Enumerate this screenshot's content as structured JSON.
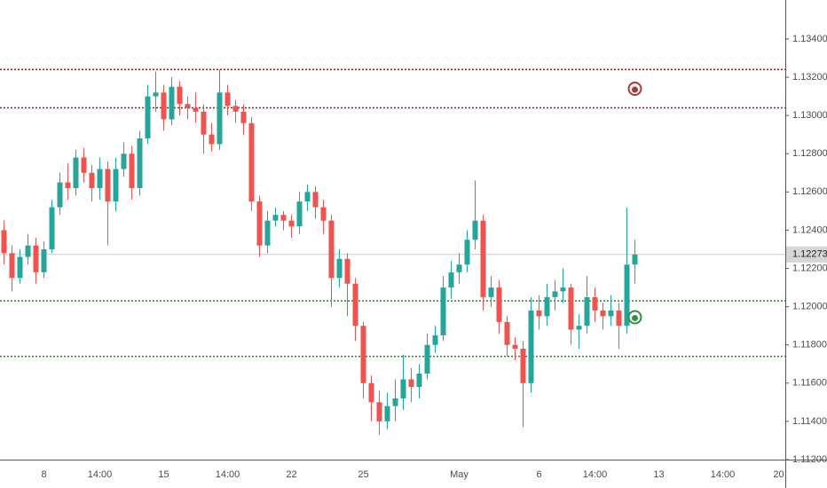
{
  "chart_data": {
    "type": "candlestick",
    "up_color": "#26a69a",
    "down_color": "#ef5350",
    "categories": [
      null,
      null,
      null,
      null,
      null,
      "8",
      null,
      null,
      null,
      null,
      null,
      null,
      "14:00",
      null,
      null,
      null,
      null,
      null,
      null,
      null,
      "15",
      null,
      null,
      null,
      null,
      null,
      null,
      null,
      "14:00",
      null,
      null,
      null,
      null,
      null,
      null,
      null,
      "22",
      null,
      null,
      null,
      null,
      null,
      null,
      null,
      null,
      "25",
      null,
      null,
      null,
      null,
      null,
      null,
      null,
      null,
      null,
      null,
      null,
      "May",
      null,
      null,
      null,
      null,
      null,
      null,
      null,
      null,
      null,
      "6",
      null,
      null,
      null,
      null,
      null,
      null,
      "14:00",
      null,
      null,
      null,
      null,
      null,
      null,
      null,
      "13",
      null,
      null,
      null,
      null,
      null,
      null,
      null,
      "14:00",
      null,
      null,
      null,
      null,
      null,
      null,
      "20"
    ],
    "open": [
      1.124,
      1.1228,
      1.1215,
      1.1226,
      1.1232,
      1.1218,
      1.123,
      1.1252,
      1.1265,
      1.1262,
      1.1278,
      1.127,
      1.1262,
      1.1272,
      1.1255,
      1.1272,
      1.128,
      1.1262,
      1.1288,
      1.131,
      1.1312,
      1.1298,
      1.1315,
      1.1306,
      1.1304,
      1.1302,
      1.129,
      1.1285,
      1.1312,
      1.1305,
      1.1302,
      1.1296,
      1.1255,
      1.1232,
      1.1245,
      1.1248,
      1.1245,
      1.1242,
      1.1255,
      1.126,
      1.1252,
      1.1245,
      1.1215,
      1.1225,
      1.1212,
      1.119,
      1.116,
      1.115,
      1.114,
      1.1148,
      1.1152,
      1.1162,
      1.1158,
      1.1165,
      1.118,
      1.1185,
      1.121,
      1.1218,
      1.1222,
      1.1235,
      1.1245,
      1.1205,
      1.121,
      1.1192,
      1.118,
      1.1178,
      1.116,
      1.1198,
      1.1195,
      1.1205,
      1.1208,
      1.121,
      1.1188,
      1.119,
      1.1205,
      1.1198,
      1.1195,
      1.1198,
      1.119,
      1.1222,
      null,
      null,
      null,
      null,
      null,
      null,
      null,
      null,
      null,
      null,
      null,
      null,
      null,
      null,
      null,
      null,
      null,
      null
    ],
    "high": [
      1.1245,
      1.1232,
      1.123,
      1.1238,
      1.1236,
      1.1234,
      1.1256,
      1.127,
      1.1275,
      1.1282,
      1.1283,
      1.1274,
      1.1278,
      1.1276,
      1.1278,
      1.1286,
      1.1284,
      1.1292,
      1.1316,
      1.1323,
      1.1316,
      1.132,
      1.1318,
      1.131,
      1.1312,
      1.1306,
      1.1296,
      1.1324,
      1.1316,
      1.1308,
      1.1306,
      1.1299,
      1.1258,
      1.125,
      1.1252,
      1.125,
      1.1248,
      1.126,
      1.1264,
      1.1263,
      1.1256,
      1.1248,
      1.123,
      1.1228,
      1.1215,
      1.1192,
      1.1164,
      1.1156,
      1.1155,
      1.1162,
      1.1175,
      1.1168,
      1.117,
      1.1186,
      1.119,
      1.1216,
      1.1224,
      1.1228,
      1.124,
      1.1266,
      1.1248,
      1.1216,
      1.1214,
      1.1195,
      1.1184,
      1.1182,
      1.1205,
      1.1206,
      1.1212,
      1.1214,
      1.122,
      1.1212,
      1.1196,
      1.1216,
      1.121,
      1.1202,
      1.1206,
      1.1202,
      1.1252,
      1.1235,
      null,
      null,
      null,
      null,
      null,
      null,
      null,
      null,
      null,
      null,
      null,
      null,
      null,
      null,
      null,
      null,
      null,
      null
    ],
    "low": [
      1.1222,
      1.1208,
      1.1212,
      1.1222,
      1.1212,
      1.1215,
      1.1228,
      1.1248,
      1.1256,
      1.1258,
      1.1265,
      1.1255,
      1.1256,
      1.1232,
      1.125,
      1.1268,
      1.1256,
      1.1258,
      1.1285,
      1.1302,
      1.1292,
      1.1295,
      1.13,
      1.1298,
      1.1296,
      1.128,
      1.1281,
      1.1282,
      1.13,
      1.1296,
      1.129,
      1.125,
      1.1226,
      1.1228,
      1.1242,
      1.124,
      1.1236,
      1.1238,
      1.125,
      1.1246,
      1.1238,
      1.12,
      1.121,
      1.1195,
      1.1182,
      1.1152,
      1.114,
      1.1133,
      1.1136,
      1.114,
      1.1146,
      1.115,
      1.1152,
      1.1162,
      1.1176,
      1.1182,
      1.1204,
      1.1212,
      1.1218,
      1.123,
      1.1198,
      1.12,
      1.1186,
      1.1174,
      1.1172,
      1.1137,
      1.1155,
      1.1188,
      1.119,
      1.1198,
      1.1202,
      1.118,
      1.1178,
      1.1186,
      1.1192,
      1.1188,
      1.119,
      1.1178,
      1.1186,
      1.1212,
      null,
      null,
      null,
      null,
      null,
      null,
      null,
      null,
      null,
      null,
      null,
      null,
      null,
      null,
      null,
      null,
      null,
      null
    ],
    "close": [
      1.1228,
      1.1215,
      1.1226,
      1.1232,
      1.1218,
      1.123,
      1.1252,
      1.1265,
      1.1262,
      1.1278,
      1.127,
      1.1262,
      1.1272,
      1.1255,
      1.1272,
      1.128,
      1.1262,
      1.1288,
      1.131,
      1.1312,
      1.1298,
      1.1315,
      1.1306,
      1.1304,
      1.1302,
      1.129,
      1.1285,
      1.1312,
      1.1305,
      1.1302,
      1.1296,
      1.1255,
      1.1232,
      1.1245,
      1.1248,
      1.1245,
      1.1242,
      1.1255,
      1.126,
      1.1252,
      1.1245,
      1.1215,
      1.1225,
      1.1212,
      1.119,
      1.116,
      1.115,
      1.114,
      1.1148,
      1.1152,
      1.1162,
      1.1158,
      1.1165,
      1.118,
      1.1185,
      1.121,
      1.1218,
      1.1222,
      1.1235,
      1.1245,
      1.1205,
      1.121,
      1.1192,
      1.118,
      1.1178,
      1.116,
      1.1198,
      1.1195,
      1.1205,
      1.1208,
      1.121,
      1.1188,
      1.119,
      1.1205,
      1.1198,
      1.1195,
      1.1198,
      1.119,
      1.1222,
      1.12273,
      null,
      null,
      null,
      null,
      null,
      null,
      null,
      null,
      null,
      null,
      null,
      null,
      null,
      null,
      null,
      null,
      null,
      null
    ],
    "ylim": [
      1.112,
      1.13604
    ],
    "yticks": [
      {
        "value": 1.112,
        "label": "1.11200"
      },
      {
        "value": 1.114,
        "label": "1.11400"
      },
      {
        "value": 1.116,
        "label": "1.11600"
      },
      {
        "value": 1.118,
        "label": "1.11800"
      },
      {
        "value": 1.12,
        "label": "1.12000"
      },
      {
        "value": 1.122,
        "label": "1.12200"
      },
      {
        "value": 1.124,
        "label": "1.12400"
      },
      {
        "value": 1.126,
        "label": "1.12600"
      },
      {
        "value": 1.128,
        "label": "1.12800"
      },
      {
        "value": 1.13,
        "label": "1.13000"
      },
      {
        "value": 1.132,
        "label": "1.13200"
      },
      {
        "value": 1.134,
        "label": "1.13400"
      }
    ],
    "levels": [
      {
        "value": 1.1324,
        "color": "#a01818"
      },
      {
        "value": 1.1304,
        "color": "#a01818"
      },
      {
        "value": 1.1203,
        "color": "#1a8a1a"
      },
      {
        "value": 1.1174,
        "color": "#1a8a1a"
      }
    ],
    "markers": [
      {
        "value": 1.1314,
        "color": "#a83838"
      },
      {
        "value": 1.11945,
        "color": "#2e9040"
      }
    ],
    "last_price_label": "1.12273"
  }
}
